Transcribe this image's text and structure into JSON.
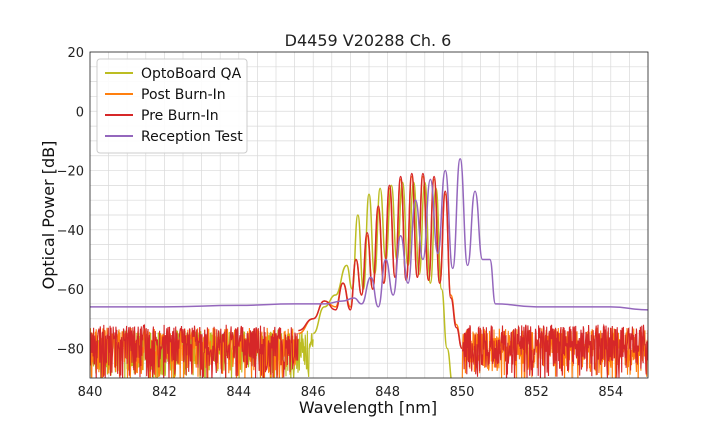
{
  "chart_data": {
    "type": "line",
    "title": "D4459 V20288 Ch. 6",
    "xlabel": "Wavelength [nm]",
    "ylabel": "Optical Power [dB]",
    "xlim": [
      840,
      855
    ],
    "ylim": [
      -90,
      20
    ],
    "xticks": [
      "840",
      "842",
      "844",
      "846",
      "848",
      "850",
      "852",
      "854"
    ],
    "yticks": [
      "20",
      "0",
      "−20",
      "−40",
      "−60",
      "−80"
    ],
    "grid": true,
    "legend_position": "top-left",
    "series": [
      {
        "name": "OptoBoard QA",
        "color": "#bcbd22",
        "noise_range": [
          840,
          846.0
        ],
        "noise_level": [
          -92,
          -74
        ],
        "x": [
          846.0,
          846.3,
          846.6,
          846.9,
          847.05,
          847.2,
          847.35,
          847.5,
          847.65,
          847.8,
          847.95,
          848.1,
          848.25,
          848.4,
          848.55,
          848.7,
          848.85,
          849.0,
          849.15,
          849.3,
          849.45,
          849.6,
          849.75
        ],
        "y": [
          -75,
          -66,
          -62,
          -52,
          -60,
          -35,
          -60,
          -28,
          -55,
          -26,
          -50,
          -25,
          -50,
          -24,
          -52,
          -24,
          -55,
          -24,
          -58,
          -26,
          -60,
          -80,
          -92
        ]
      },
      {
        "name": "Post Burn-In",
        "color": "#ff7f0e",
        "noise_range": [
          840,
          855
        ],
        "noise_level": [
          -92,
          -73
        ],
        "x": [
          845.6,
          846.0,
          846.3,
          846.6,
          846.8,
          847.0,
          847.15,
          847.3,
          847.45,
          847.6,
          847.75,
          847.9,
          848.05,
          848.2,
          848.35,
          848.5,
          848.65,
          848.8,
          848.95,
          849.1,
          849.25,
          849.4,
          849.55,
          849.7,
          849.85,
          850.0
        ],
        "y": [
          -75,
          -70,
          -64,
          -66,
          -58,
          -66,
          -50,
          -62,
          -42,
          -60,
          -33,
          -58,
          -26,
          -56,
          -23,
          -57,
          -22,
          -56,
          -22,
          -57,
          -23,
          -58,
          -28,
          -62,
          -72,
          -80
        ]
      },
      {
        "name": "Pre Burn-In",
        "color": "#d62728",
        "noise_range": [
          840,
          855
        ],
        "noise_level": [
          -92,
          -72
        ],
        "x": [
          845.6,
          846.0,
          846.3,
          846.6,
          846.8,
          847.0,
          847.15,
          847.3,
          847.45,
          847.6,
          847.75,
          847.9,
          848.05,
          848.2,
          848.35,
          848.5,
          848.65,
          848.8,
          848.95,
          849.1,
          849.25,
          849.4,
          849.55,
          849.7,
          849.85,
          850.0
        ],
        "y": [
          -74,
          -70,
          -64,
          -67,
          -58,
          -67,
          -50,
          -62,
          -41,
          -60,
          -32,
          -58,
          -25,
          -56,
          -22,
          -57,
          -21,
          -56,
          -21,
          -57,
          -22,
          -58,
          -27,
          -63,
          -73,
          -80
        ]
      },
      {
        "name": "Reception Test",
        "color": "#9467bd",
        "noise_range": [],
        "noise_level": [],
        "x": [
          840.0,
          842.0,
          844.0,
          845.5,
          846.3,
          846.8,
          847.1,
          847.3,
          847.55,
          847.75,
          847.95,
          848.15,
          848.35,
          848.55,
          848.75,
          848.95,
          849.15,
          849.35,
          849.55,
          849.75,
          849.95,
          850.15,
          850.35,
          850.55,
          850.75,
          850.9,
          852.0,
          854.0,
          855.0
        ],
        "y": [
          -66,
          -66,
          -65.5,
          -65,
          -65,
          -64,
          -63,
          -65,
          -56,
          -66,
          -50,
          -62,
          -42,
          -58,
          -30,
          -50,
          -23,
          -48,
          -20,
          -53,
          -16,
          -52,
          -27,
          -50,
          -50,
          -65,
          -66,
          -66,
          -67
        ]
      }
    ]
  }
}
